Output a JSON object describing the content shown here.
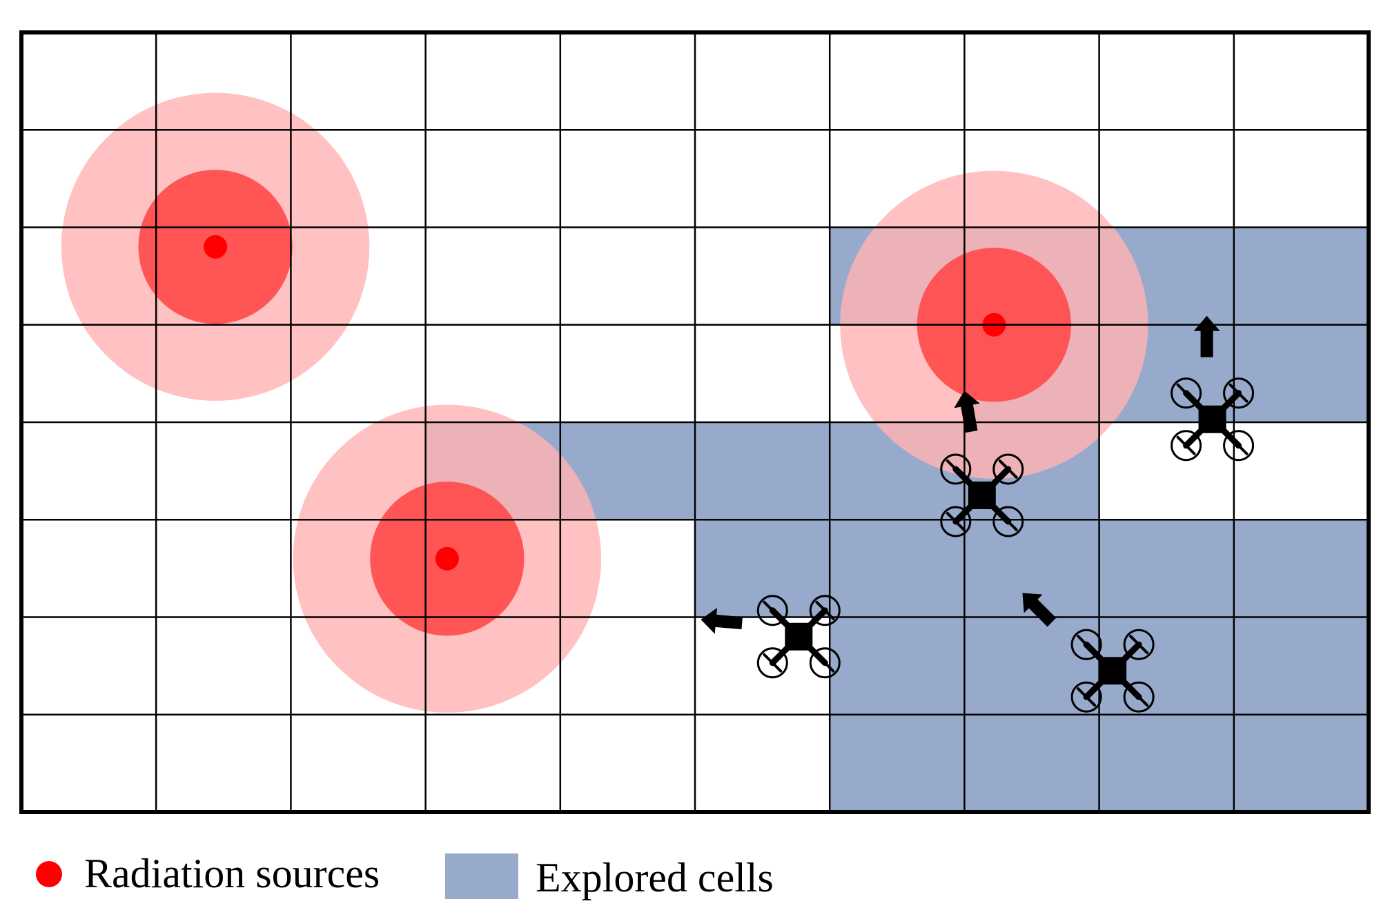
{
  "grid": {
    "columns": 10,
    "rows": 8
  },
  "colors": {
    "explored": "#98aacb",
    "halo_outer": "#ffb3b3",
    "halo_inner": "#ff4c4c",
    "source_point": "#ff0000",
    "drone": "#000000",
    "grid_line": "#000000"
  },
  "explored_cells": [
    [
      4,
      6
    ],
    [
      4,
      3
    ],
    [
      4,
      4
    ],
    [
      4,
      5
    ],
    [
      4,
      6
    ],
    [
      4,
      7
    ],
    [
      5,
      5
    ],
    [
      5,
      6
    ],
    [
      5,
      7
    ],
    [
      5,
      8
    ],
    [
      5,
      9
    ],
    [
      6,
      6
    ],
    [
      6,
      7
    ],
    [
      6,
      8
    ],
    [
      6,
      9
    ],
    [
      7,
      6
    ],
    [
      7,
      7
    ],
    [
      7,
      8
    ],
    [
      7,
      9
    ],
    [
      3,
      7
    ],
    [
      3,
      8
    ],
    [
      3,
      9
    ],
    [
      2,
      6
    ],
    [
      2,
      7
    ],
    [
      2,
      8
    ],
    [
      2,
      9
    ]
  ],
  "radiation_sources": [
    {
      "col": 1.44,
      "row": 2.2
    },
    {
      "col": 3.16,
      "row": 5.4
    },
    {
      "col": 7.22,
      "row": 3.0
    }
  ],
  "drones": [
    {
      "col": 5.77,
      "row": 6.2,
      "heading": "left"
    },
    {
      "col": 7.13,
      "row": 4.75,
      "heading": "up"
    },
    {
      "col": 8.84,
      "row": 3.97,
      "heading": "up"
    },
    {
      "col": 8.1,
      "row": 6.55,
      "heading": "up-left"
    }
  ],
  "legend": {
    "sources_label": "Radiation sources",
    "explored_label": "Explored cells"
  }
}
